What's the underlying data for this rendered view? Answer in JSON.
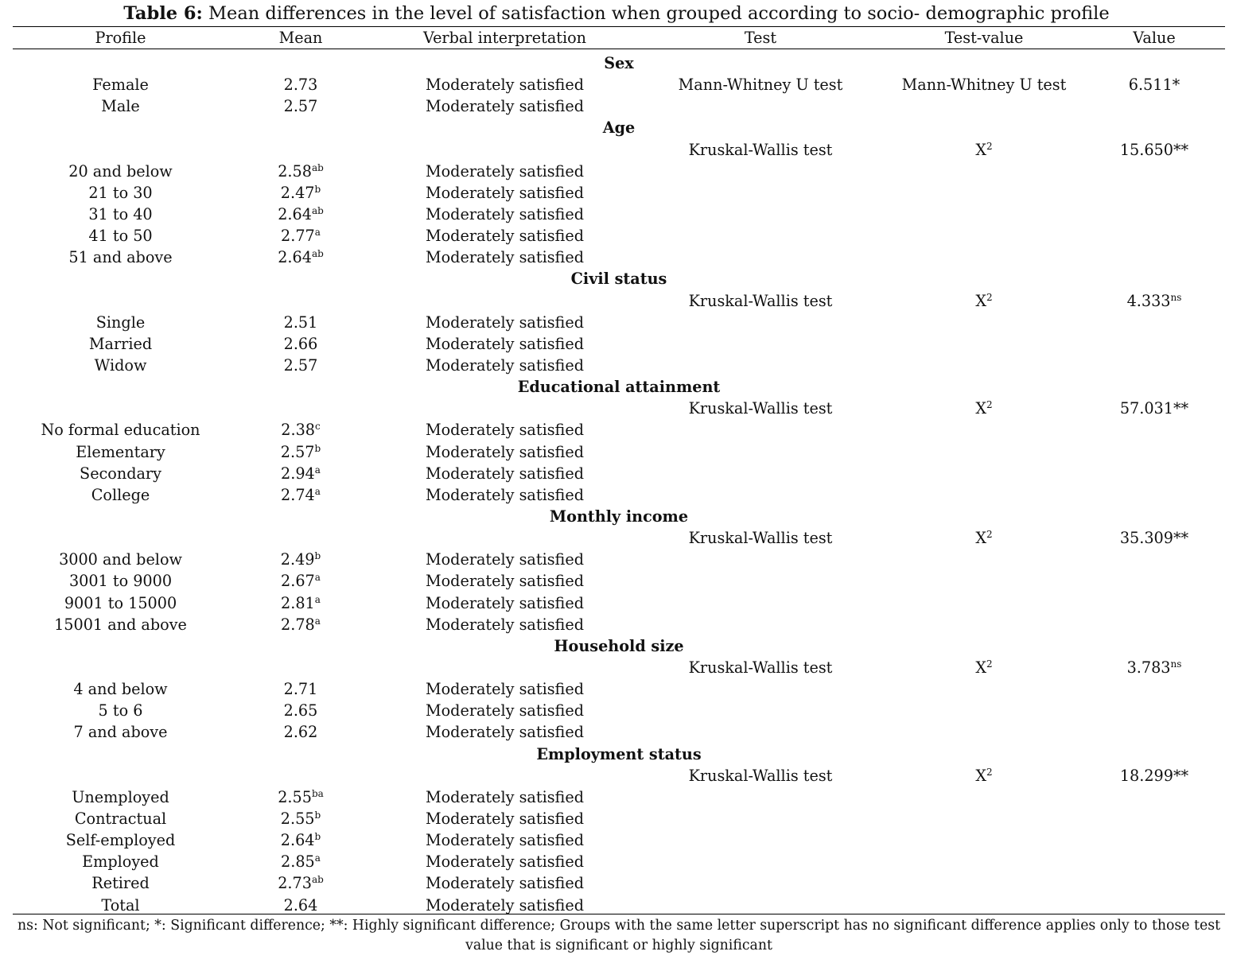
{
  "caption": {
    "label": "Table 6:",
    "text": " Mean differences in the level of satisfaction when grouped according to socio- demographic profile"
  },
  "columns": [
    "Profile",
    "Mean",
    "Verbal interpretation",
    "Test",
    "Test-value",
    "Value"
  ],
  "sections": [
    {
      "title": "Sex",
      "test_row": null,
      "rows": [
        {
          "profile": "Female",
          "mean": "2.73",
          "sup": "",
          "verbal": "Moderately satisfied",
          "test": "Mann-Whitney U test",
          "test_value": "Mann-Whitney U test",
          "value": "6.511*",
          "value_sup": ""
        },
        {
          "profile": "Male",
          "mean": "2.57",
          "sup": "",
          "verbal": "Moderately satisfied",
          "test": "",
          "test_value": "",
          "value": "",
          "value_sup": ""
        }
      ]
    },
    {
      "title": "Age",
      "test_row": {
        "test": "Kruskal-Wallis test",
        "test_value": "X",
        "test_value_sup": "2",
        "value": "15.650**",
        "value_sup": ""
      },
      "rows": [
        {
          "profile": "20 and below",
          "mean": "2.58",
          "sup": "ab",
          "verbal": "Moderately satisfied"
        },
        {
          "profile": "21 to 30",
          "mean": "2.47",
          "sup": "b",
          "verbal": "Moderately satisfied"
        },
        {
          "profile": "31 to 40",
          "mean": "2.64",
          "sup": "ab",
          "verbal": "Moderately satisfied"
        },
        {
          "profile": "41 to 50",
          "mean": "2.77",
          "sup": "a",
          "verbal": "Moderately satisfied"
        },
        {
          "profile": "51 and above",
          "mean": "2.64",
          "sup": "ab",
          "verbal": "Moderately satisfied"
        }
      ]
    },
    {
      "title": "Civil status",
      "test_row": {
        "test": "Kruskal-Wallis test",
        "test_value": "X",
        "test_value_sup": "2",
        "value": "4.333",
        "value_sup": "ns"
      },
      "rows": [
        {
          "profile": "Single",
          "mean": "2.51",
          "sup": "",
          "verbal": "Moderately satisfied"
        },
        {
          "profile": "Married",
          "mean": "2.66",
          "sup": "",
          "verbal": "Moderately satisfied"
        },
        {
          "profile": "Widow",
          "mean": "2.57",
          "sup": "",
          "verbal": "Moderately satisfied"
        }
      ]
    },
    {
      "title": "Educational attainment",
      "test_row": {
        "test": "Kruskal-Wallis test",
        "test_value": "X",
        "test_value_sup": "2",
        "value": "57.031**",
        "value_sup": ""
      },
      "rows": [
        {
          "profile": "No formal education",
          "mean": "2.38",
          "sup": "c",
          "verbal": "Moderately satisfied"
        },
        {
          "profile": "Elementary",
          "mean": "2.57",
          "sup": "b",
          "verbal": "Moderately satisfied"
        },
        {
          "profile": "Secondary",
          "mean": "2.94",
          "sup": "a",
          "verbal": "Moderately satisfied"
        },
        {
          "profile": "College",
          "mean": "2.74",
          "sup": "a",
          "verbal": "Moderately satisfied"
        }
      ]
    },
    {
      "title": "Monthly income",
      "test_row": {
        "test": "Kruskal-Wallis test",
        "test_value": "X",
        "test_value_sup": "2",
        "value": "35.309**",
        "value_sup": ""
      },
      "rows": [
        {
          "profile": "3000 and below",
          "mean": "2.49",
          "sup": "b",
          "verbal": "Moderately satisfied"
        },
        {
          "profile": "3001 to 9000",
          "mean": "2.67",
          "sup": "a",
          "verbal": "Moderately satisfied"
        },
        {
          "profile": "9001 to 15000",
          "mean": "2.81",
          "sup": "a",
          "verbal": "Moderately satisfied"
        },
        {
          "profile": "15001 and above",
          "mean": "2.78",
          "sup": "a",
          "verbal": "Moderately satisfied"
        }
      ]
    },
    {
      "title": "Household size",
      "test_row": {
        "test": "Kruskal-Wallis test",
        "test_value": "X",
        "test_value_sup": "2",
        "value": "3.783",
        "value_sup": "ns"
      },
      "rows": [
        {
          "profile": "4 and below",
          "mean": "2.71",
          "sup": "",
          "verbal": "Moderately satisfied"
        },
        {
          "profile": "5 to 6",
          "mean": "2.65",
          "sup": "",
          "verbal": "Moderately satisfied"
        },
        {
          "profile": "7 and above",
          "mean": "2.62",
          "sup": "",
          "verbal": "Moderately satisfied"
        }
      ]
    },
    {
      "title": "Employment status",
      "test_row": {
        "test": "Kruskal-Wallis test",
        "test_value": "X",
        "test_value_sup": "2",
        "value": "18.299**",
        "value_sup": ""
      },
      "rows": [
        {
          "profile": "Unemployed",
          "mean": "2.55",
          "sup": "ba",
          "verbal": "Moderately satisfied"
        },
        {
          "profile": "Contractual",
          "mean": "2.55",
          "sup": "b",
          "verbal": "Moderately satisfied"
        },
        {
          "profile": "Self-employed",
          "mean": "2.64",
          "sup": "b",
          "verbal": "Moderately satisfied"
        },
        {
          "profile": "Employed",
          "mean": "2.85",
          "sup": "a",
          "verbal": "Moderately satisfied"
        },
        {
          "profile": "Retired",
          "mean": "2.73",
          "sup": "ab",
          "verbal": "Moderately satisfied"
        }
      ]
    }
  ],
  "total": {
    "profile": "Total",
    "mean": "2.64",
    "verbal": "Moderately satisfied"
  },
  "footnote": "ns: Not significant; *: Significant difference; **: Highly significant difference; Groups with the same letter superscript has no significant difference applies only to those test value that is significant or highly significant"
}
